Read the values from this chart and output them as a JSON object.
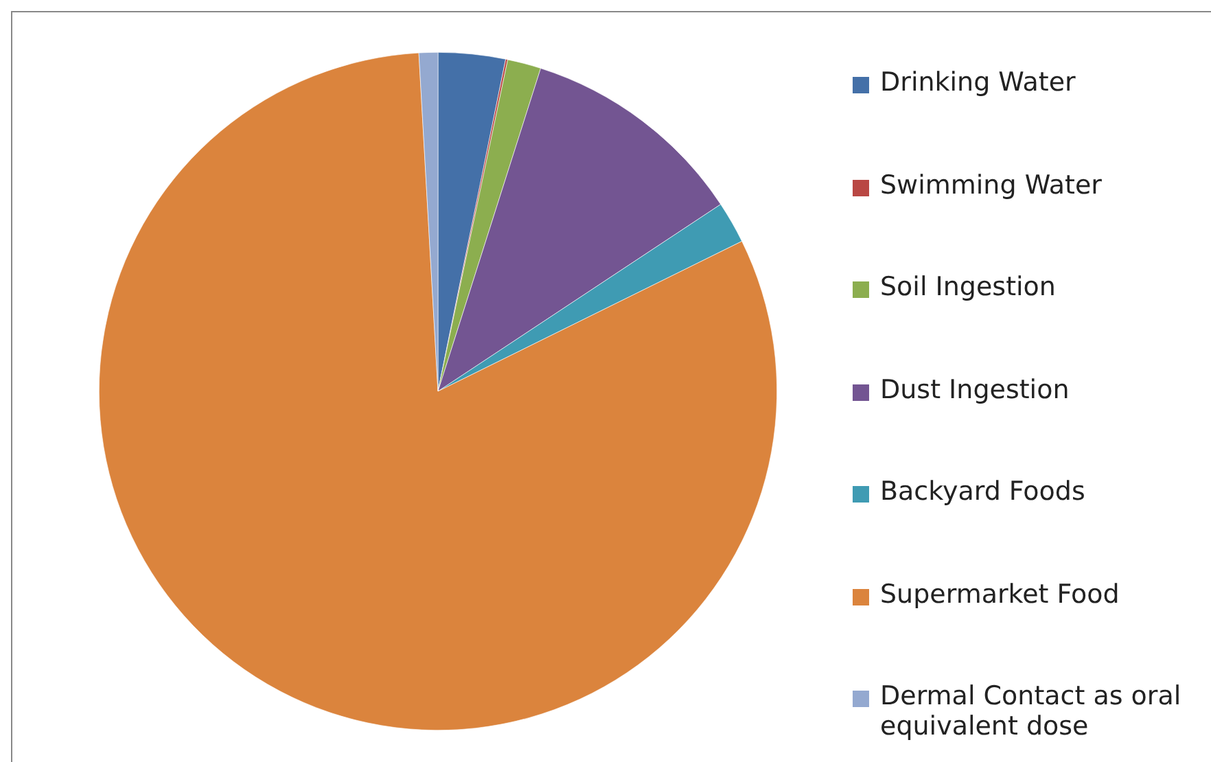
{
  "chart_data": {
    "type": "pie",
    "categories": [
      "Drinking Water",
      "Swimming Water",
      "Soil Ingestion",
      "Dust Ingestion",
      "Backyard Foods",
      "Supermarket Food",
      "Dermal Contact as oral equivalent dose"
    ],
    "values": [
      3.2,
      0.1,
      1.6,
      10.8,
      2.0,
      81.4,
      0.9
    ],
    "colors": [
      "#4470a8",
      "#b94743",
      "#8cae4f",
      "#735592",
      "#3f9bb3",
      "#db843d",
      "#94a9d0"
    ],
    "legend": "right"
  }
}
